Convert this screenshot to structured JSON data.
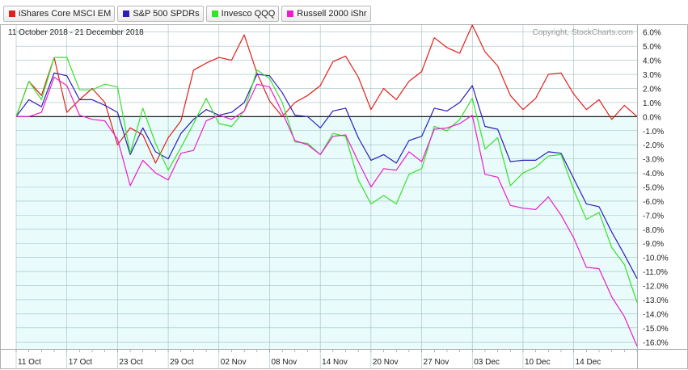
{
  "colors": {
    "iShares Core MSCI EM": "#e0201b",
    "S&P 500 SPDRs": "#2b1fb8",
    "Invesco QQQ": "#35e22a",
    "Russell 2000 iShr": "#ee1ccd",
    "negative_fill": "#e9fbfb",
    "grid": "#9fbfbf",
    "zero_line": "#000000"
  },
  "chart_data": {
    "type": "line",
    "date_range": "11 October 2018 - 21 December 2018",
    "copyright": "Copyright, StockCharts.com",
    "x_tick_labels": [
      "11 Oct",
      "17 Oct",
      "23 Oct",
      "29 Oct",
      "02 Nov",
      "08 Nov",
      "14 Nov",
      "20 Nov",
      "27 Nov",
      "03 Dec",
      "10 Dec",
      "14 Dec"
    ],
    "x_tick_index": [
      0,
      4,
      8,
      12,
      16,
      20,
      24,
      28,
      32,
      36,
      40,
      44
    ],
    "y_tick_labels": [
      "6.0%",
      "5.0%",
      "4.0%",
      "3.0%",
      "2.0%",
      "1.0%",
      "0.0%",
      "-1.0%",
      "-2.0%",
      "-3.0%",
      "-4.0%",
      "-5.0%",
      "-6.0%",
      "-7.0%",
      "-8.0%",
      "-9.0%",
      "-10.0%",
      "-11.0%",
      "-12.0%",
      "-13.0%",
      "-14.0%",
      "-15.0%",
      "-16.0%"
    ],
    "ylim": [
      -16.5,
      6.5
    ],
    "y_unit": "%",
    "legend_position": "top-left",
    "series": [
      {
        "name": "iShares Core MSCI EM",
        "color": "#e0201b",
        "values": [
          0.0,
          2.5,
          1.5,
          4.2,
          0.3,
          1.2,
          2.0,
          1.0,
          -2.0,
          -0.8,
          -1.3,
          -3.3,
          -1.5,
          -0.3,
          3.3,
          3.8,
          4.2,
          4.0,
          5.8,
          3.1,
          1.1,
          0.0,
          1.0,
          1.5,
          2.2,
          3.9,
          4.3,
          2.8,
          0.5,
          2.0,
          1.2,
          2.5,
          3.2,
          5.6,
          4.9,
          4.5,
          6.5,
          4.6,
          3.6,
          1.5,
          0.5,
          1.3,
          3.0,
          3.1,
          1.6,
          0.5,
          1.2,
          -0.2,
          0.8,
          0.0
        ]
      },
      {
        "name": "S&P 500 SPDRs",
        "color": "#2b1fb8",
        "values": [
          0.0,
          1.2,
          0.7,
          3.1,
          2.9,
          1.2,
          1.2,
          0.8,
          0.3,
          -2.7,
          -0.8,
          -2.5,
          -3.0,
          -1.2,
          -0.2,
          0.5,
          0.1,
          0.3,
          1.0,
          3.0,
          2.9,
          1.7,
          0.1,
          0.0,
          -0.8,
          0.4,
          0.6,
          -1.5,
          -3.1,
          -2.7,
          -3.3,
          -1.7,
          -1.4,
          0.6,
          0.4,
          1.0,
          2.2,
          -0.7,
          -0.9,
          -3.2,
          -3.1,
          -3.1,
          -2.5,
          -2.6,
          -4.4,
          -6.2,
          -6.4,
          -8.2,
          -9.8,
          -11.5
        ]
      },
      {
        "name": "Invesco QQQ",
        "color": "#35e22a",
        "values": [
          0.0,
          2.5,
          1.2,
          4.2,
          4.2,
          1.9,
          1.9,
          2.3,
          2.1,
          -2.6,
          0.6,
          -1.9,
          -3.8,
          -2.2,
          -0.5,
          1.3,
          -0.5,
          -0.7,
          0.4,
          3.3,
          2.7,
          1.0,
          -1.8,
          -1.9,
          -2.7,
          -1.2,
          -1.4,
          -4.5,
          -6.2,
          -5.6,
          -6.2,
          -4.1,
          -3.7,
          -0.7,
          -1.0,
          -0.2,
          1.3,
          -2.3,
          -1.5,
          -4.9,
          -4.0,
          -3.6,
          -2.8,
          -2.7,
          -5.2,
          -7.3,
          -6.8,
          -9.3,
          -10.5,
          -13.2
        ]
      },
      {
        "name": "Russell 2000 iShr",
        "color": "#ee1ccd",
        "values": [
          0.0,
          0.0,
          0.3,
          2.8,
          2.2,
          0.1,
          -0.2,
          -0.3,
          -1.6,
          -4.9,
          -3.1,
          -4.0,
          -4.5,
          -2.6,
          -2.4,
          -0.3,
          0.1,
          -0.2,
          0.4,
          2.3,
          2.1,
          0.3,
          -1.7,
          -2.0,
          -2.7,
          -1.4,
          -1.3,
          -3.2,
          -5.0,
          -3.7,
          -3.8,
          -2.5,
          -3.2,
          -0.9,
          -0.8,
          -0.5,
          0.1,
          -4.1,
          -4.3,
          -6.3,
          -6.5,
          -6.6,
          -5.7,
          -7.0,
          -8.6,
          -10.7,
          -10.8,
          -12.8,
          -14.2,
          -16.3
        ]
      }
    ]
  }
}
